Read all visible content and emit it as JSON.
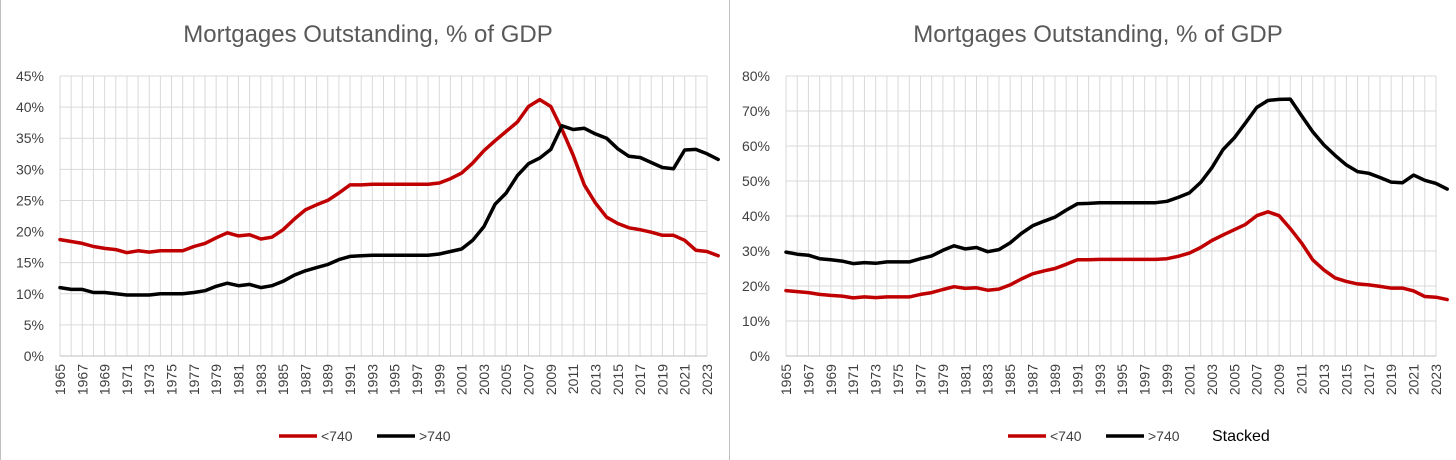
{
  "chart_data": [
    {
      "type": "line",
      "title": "Mortgages Outstanding, % of GDP",
      "xlabel": "",
      "ylabel": "",
      "x_tick_labels": [
        "1965",
        "1967",
        "1969",
        "1971",
        "1973",
        "1975",
        "1977",
        "1979",
        "1981",
        "1983",
        "1985",
        "1987",
        "1989",
        "1991",
        "1993",
        "1995",
        "1997",
        "1999",
        "2001",
        "2003",
        "2005",
        "2007",
        "2009",
        "2011",
        "2013",
        "2015",
        "2017",
        "2019",
        "2021",
        "2023"
      ],
      "y_tick_labels": [
        "0%",
        "5%",
        "10%",
        "15%",
        "20%",
        "25%",
        "30%",
        "35%",
        "40%",
        "45%"
      ],
      "ylim": [
        0,
        45
      ],
      "grid": true,
      "legend_position": "bottom",
      "x_start": 1965,
      "x_end": 2023,
      "series": [
        {
          "name": "<740",
          "color": "#c00000",
          "values": [
            18.7,
            18.4,
            18.1,
            17.6,
            17.3,
            17.1,
            16.6,
            16.9,
            16.7,
            16.9,
            16.9,
            16.9,
            17.6,
            18.1,
            19.0,
            19.8,
            19.3,
            19.5,
            18.8,
            19.1,
            20.3,
            22.0,
            23.5,
            24.3,
            25.0,
            26.2,
            27.5,
            27.5,
            27.6,
            27.6,
            27.6,
            27.6,
            27.6,
            27.6,
            27.8,
            28.5,
            29.4,
            31.0,
            33.0,
            34.6,
            36.1,
            37.6,
            40.1,
            41.2,
            40.1,
            36.4,
            32.3,
            27.5,
            24.6,
            22.3,
            21.3,
            20.6,
            20.3,
            19.9,
            19.4,
            19.4,
            18.6,
            17.0,
            16.8,
            16.1
          ]
        },
        {
          "name": ">740",
          "color": "#000000",
          "values": [
            11.0,
            10.7,
            10.7,
            10.2,
            10.2,
            10.0,
            9.8,
            9.8,
            9.8,
            10.0,
            10.0,
            10.0,
            10.2,
            10.5,
            11.2,
            11.7,
            11.3,
            11.5,
            11.0,
            11.3,
            12.0,
            13.0,
            13.7,
            14.2,
            14.7,
            15.5,
            16.0,
            16.1,
            16.2,
            16.2,
            16.2,
            16.2,
            16.2,
            16.2,
            16.4,
            16.8,
            17.2,
            18.6,
            20.8,
            24.4,
            26.2,
            29.0,
            30.9,
            31.8,
            33.2,
            37.0,
            36.4,
            36.6,
            35.7,
            35.0,
            33.3,
            32.1,
            31.9,
            31.1,
            30.3,
            30.1,
            33.1,
            33.2,
            32.5,
            31.6
          ]
        }
      ]
    },
    {
      "type": "line",
      "title": "Mortgages Outstanding, % of GDP",
      "xlabel": "",
      "ylabel": "",
      "x_tick_labels": [
        "1965",
        "1967",
        "1969",
        "1971",
        "1973",
        "1975",
        "1977",
        "1979",
        "1981",
        "1983",
        "1985",
        "1987",
        "1989",
        "1991",
        "1993",
        "1995",
        "1997",
        "1999",
        "2001",
        "2003",
        "2005",
        "2007",
        "2009",
        "2011",
        "2013",
        "2015",
        "2017",
        "2019",
        "2021",
        "2023"
      ],
      "y_tick_labels": [
        "0%",
        "10%",
        "20%",
        "30%",
        "40%",
        "50%",
        "60%",
        "70%",
        "80%"
      ],
      "ylim": [
        0,
        80
      ],
      "grid": true,
      "legend_position": "bottom",
      "annotation": "Stacked",
      "x_start": 1965,
      "x_end": 2023,
      "series": [
        {
          "name": "<740",
          "color": "#c00000",
          "values": [
            18.7,
            18.4,
            18.1,
            17.6,
            17.3,
            17.1,
            16.6,
            16.9,
            16.7,
            16.9,
            16.9,
            16.9,
            17.6,
            18.1,
            19.0,
            19.8,
            19.3,
            19.5,
            18.8,
            19.1,
            20.3,
            22.0,
            23.5,
            24.3,
            25.0,
            26.2,
            27.5,
            27.5,
            27.6,
            27.6,
            27.6,
            27.6,
            27.6,
            27.6,
            27.8,
            28.5,
            29.4,
            31.0,
            33.0,
            34.6,
            36.1,
            37.6,
            40.1,
            41.2,
            40.1,
            36.4,
            32.3,
            27.5,
            24.6,
            22.3,
            21.3,
            20.6,
            20.3,
            19.9,
            19.4,
            19.4,
            18.6,
            17.0,
            16.8,
            16.1
          ]
        },
        {
          "name": ">740",
          "color": "#000000",
          "values": [
            29.7,
            29.1,
            28.8,
            27.8,
            27.5,
            27.1,
            26.4,
            26.7,
            26.5,
            26.9,
            26.9,
            26.9,
            27.8,
            28.6,
            30.2,
            31.5,
            30.6,
            31.0,
            29.8,
            30.4,
            32.3,
            35.0,
            37.2,
            38.5,
            39.7,
            41.7,
            43.5,
            43.6,
            43.8,
            43.8,
            43.8,
            43.8,
            43.8,
            43.8,
            44.2,
            45.3,
            46.6,
            49.6,
            53.8,
            59.0,
            62.3,
            66.6,
            71.0,
            73.0,
            73.3,
            73.4,
            68.7,
            64.1,
            60.3,
            57.3,
            54.6,
            52.7,
            52.2,
            51.0,
            49.7,
            49.5,
            51.7,
            50.2,
            49.3,
            47.7
          ]
        }
      ]
    }
  ]
}
